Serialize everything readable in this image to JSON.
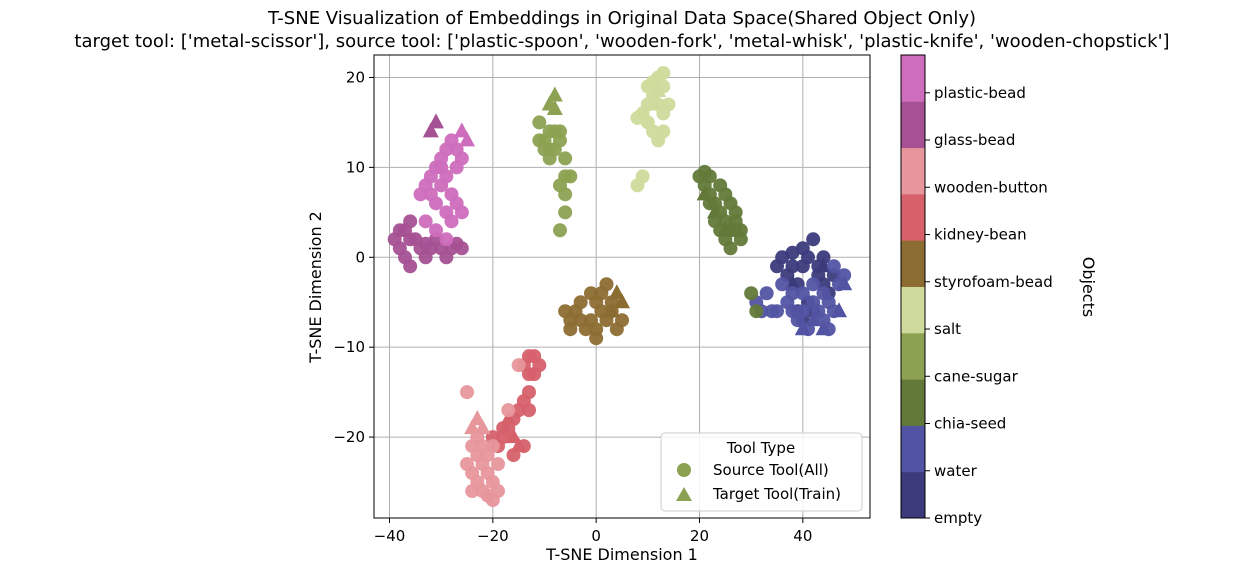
{
  "chart_data": {
    "type": "scatter",
    "title": "T-SNE Visualization of Embeddings in Original Data Space(Shared Object Only)",
    "subtitle": "target tool: ['metal-scissor'], source tool: ['plastic-spoon', 'wooden-fork', 'metal-whisk', 'plastic-knife', 'wooden-chopstick']",
    "xlabel": "T-SNE Dimension 1",
    "ylabel": "T-SNE Dimension 2",
    "xlim": [
      -43,
      53
    ],
    "ylim": [
      -29,
      22.5
    ],
    "xticks": [
      -40,
      -20,
      0,
      20,
      40
    ],
    "yticks": [
      -20,
      -10,
      0,
      10,
      20
    ],
    "xtick_labels": [
      "−40",
      "−20",
      "0",
      "20",
      "40"
    ],
    "ytick_labels": [
      "−20",
      "−10",
      "0",
      "10",
      "20"
    ],
    "grid": true,
    "legend": {
      "title": "Tool Type",
      "placement": "lower-right",
      "entries": [
        {
          "label": "Source Tool(All)",
          "marker": "circle"
        },
        {
          "label": "Target Tool(Train)",
          "marker": "triangle"
        }
      ]
    },
    "colorbar": {
      "label": "Objects",
      "categories": [
        {
          "name": "empty",
          "color": "#3b3b7c"
        },
        {
          "name": "water",
          "color": "#5254a3"
        },
        {
          "name": "chia-seed",
          "color": "#637939"
        },
        {
          "name": "cane-sugar",
          "color": "#8ca252"
        },
        {
          "name": "salt",
          "color": "#cedb9c"
        },
        {
          "name": "styrofoam-bead",
          "color": "#8c6d31"
        },
        {
          "name": "kidney-bean",
          "color": "#d6616b"
        },
        {
          "name": "wooden-button",
          "color": "#e7969c"
        },
        {
          "name": "glass-bead",
          "color": "#a55194"
        },
        {
          "name": "plastic-bead",
          "color": "#ce6dbd"
        }
      ],
      "tick_labels": [
        "empty",
        "water",
        "chia-seed",
        "cane-sugar",
        "salt",
        "styrofoam-bead",
        "kidney-bean",
        "wooden-button",
        "glass-bead",
        "plastic-bead"
      ]
    },
    "series": [
      {
        "object": "empty",
        "color": "#3b3b7c",
        "source": [
          [
            36,
            0
          ],
          [
            38,
            -1
          ],
          [
            40,
            1
          ],
          [
            42,
            2
          ],
          [
            44,
            0
          ],
          [
            39,
            -3
          ],
          [
            41,
            -5
          ],
          [
            43,
            -2
          ],
          [
            45,
            -4
          ],
          [
            37,
            -2
          ],
          [
            40,
            -1
          ],
          [
            42,
            -6
          ],
          [
            44,
            -3
          ],
          [
            38,
            0.5
          ],
          [
            41,
            0
          ],
          [
            43,
            -1
          ],
          [
            39,
            -6
          ],
          [
            46,
            -2
          ],
          [
            35,
            -1
          ],
          [
            40,
            -7
          ]
        ],
        "target": [
          [
            38,
            -3
          ],
          [
            44,
            -1
          ]
        ]
      },
      {
        "object": "water",
        "color": "#5254a3",
        "source": [
          [
            31,
            -5
          ],
          [
            33,
            -4
          ],
          [
            35,
            -6
          ],
          [
            37,
            -5
          ],
          [
            39,
            -7
          ],
          [
            41,
            -8
          ],
          [
            43,
            -6
          ],
          [
            45,
            -5
          ],
          [
            47,
            -3
          ],
          [
            46,
            -1
          ],
          [
            44,
            -4
          ],
          [
            42,
            -3
          ],
          [
            40,
            -4
          ],
          [
            38,
            -6
          ],
          [
            36,
            -3
          ],
          [
            34,
            -6
          ],
          [
            32,
            -6
          ],
          [
            44,
            -7
          ],
          [
            46,
            -6
          ],
          [
            48,
            -2
          ],
          [
            45,
            -8
          ],
          [
            42,
            -5
          ],
          [
            40,
            -6
          ],
          [
            38,
            -4
          ]
        ],
        "target": [
          [
            40,
            -8
          ],
          [
            44,
            -8
          ],
          [
            47,
            -6
          ],
          [
            48,
            -3
          ],
          [
            42,
            -7
          ]
        ]
      },
      {
        "object": "chia-seed",
        "color": "#637939",
        "source": [
          [
            20,
            9
          ],
          [
            21,
            8
          ],
          [
            22,
            7
          ],
          [
            23,
            6
          ],
          [
            24,
            5
          ],
          [
            25,
            4
          ],
          [
            26,
            3
          ],
          [
            27,
            3
          ],
          [
            28,
            2
          ],
          [
            27,
            4
          ],
          [
            26,
            6
          ],
          [
            25,
            7
          ],
          [
            24,
            8
          ],
          [
            22,
            9
          ],
          [
            21,
            9.5
          ],
          [
            23,
            4
          ],
          [
            26,
            1
          ],
          [
            28,
            3
          ],
          [
            27,
            5
          ],
          [
            25,
            2
          ],
          [
            30,
            -4
          ],
          [
            31,
            -6
          ],
          [
            22,
            6
          ],
          [
            24,
            3
          ]
        ],
        "target": [
          [
            21,
            7
          ],
          [
            23,
            5
          ],
          [
            25,
            3
          ]
        ]
      },
      {
        "object": "cane-sugar",
        "color": "#8ca252",
        "source": [
          [
            -11,
            15
          ],
          [
            -10,
            13
          ],
          [
            -9,
            14
          ],
          [
            -8,
            12
          ],
          [
            -7,
            13
          ],
          [
            -6,
            11
          ],
          [
            -10,
            12
          ],
          [
            -11,
            13
          ],
          [
            -9,
            12
          ],
          [
            -7,
            14
          ],
          [
            -6,
            9
          ],
          [
            -5,
            9
          ],
          [
            -7,
            8
          ],
          [
            -6,
            7
          ],
          [
            -6,
            5
          ],
          [
            -7,
            3
          ],
          [
            -9,
            11
          ],
          [
            -8,
            14
          ]
        ],
        "target": [
          [
            -9,
            17
          ],
          [
            -8,
            18
          ],
          [
            -8,
            16.5
          ]
        ]
      },
      {
        "object": "salt",
        "color": "#cedb9c",
        "source": [
          [
            10,
            19
          ],
          [
            11,
            18
          ],
          [
            12,
            20
          ],
          [
            13,
            19
          ],
          [
            14,
            17
          ],
          [
            12,
            17
          ],
          [
            10,
            17
          ],
          [
            9,
            16
          ],
          [
            8,
            15.5
          ],
          [
            13,
            16
          ],
          [
            11,
            14
          ],
          [
            12,
            13
          ],
          [
            13,
            14
          ],
          [
            9,
            9
          ],
          [
            8,
            8
          ],
          [
            11,
            19.5
          ],
          [
            13,
            20.5
          ],
          [
            10,
            15
          ]
        ],
        "target": [
          [
            11,
            17
          ],
          [
            12,
            18.5
          ]
        ]
      },
      {
        "object": "styrofoam-bead",
        "color": "#8c6d31",
        "source": [
          [
            -6,
            -6
          ],
          [
            -5,
            -7
          ],
          [
            -4,
            -6
          ],
          [
            -3,
            -7
          ],
          [
            -2,
            -8
          ],
          [
            -1,
            -7
          ],
          [
            0,
            -9
          ],
          [
            1,
            -6
          ],
          [
            2,
            -7
          ],
          [
            3,
            -6
          ],
          [
            4,
            -8
          ],
          [
            5,
            -7
          ],
          [
            0,
            -5
          ],
          [
            -1,
            -4
          ],
          [
            1,
            -4
          ],
          [
            2,
            -3
          ],
          [
            3,
            -5
          ],
          [
            -3,
            -5
          ],
          [
            -5,
            -8
          ],
          [
            0,
            -8
          ]
        ],
        "target": [
          [
            4,
            -4
          ],
          [
            3,
            -6
          ],
          [
            5,
            -5
          ]
        ]
      },
      {
        "object": "kidney-bean",
        "color": "#d6616b",
        "source": [
          [
            -14,
            -12
          ],
          [
            -13,
            -13
          ],
          [
            -12,
            -11
          ],
          [
            -11,
            -12
          ],
          [
            -13,
            -15
          ],
          [
            -14,
            -16
          ],
          [
            -13,
            -17
          ],
          [
            -15,
            -17
          ],
          [
            -16,
            -18
          ],
          [
            -17,
            -19
          ],
          [
            -18,
            -20
          ],
          [
            -19,
            -21
          ],
          [
            -20,
            -20
          ],
          [
            -18,
            -19
          ],
          [
            -16,
            -22
          ],
          [
            -14,
            -21
          ],
          [
            -12,
            -13
          ],
          [
            -13,
            -11
          ]
        ],
        "target": [
          [
            -15,
            -21
          ],
          [
            -16,
            -20
          ],
          [
            -17,
            -18
          ]
        ]
      },
      {
        "object": "wooden-button",
        "color": "#e7969c",
        "source": [
          [
            -25,
            -15
          ],
          [
            -24,
            -21
          ],
          [
            -23,
            -22
          ],
          [
            -22,
            -23
          ],
          [
            -21,
            -24
          ],
          [
            -20,
            -25
          ],
          [
            -19,
            -26
          ],
          [
            -22,
            -26
          ],
          [
            -24,
            -24
          ],
          [
            -25,
            -23
          ],
          [
            -23,
            -25
          ],
          [
            -21,
            -22
          ],
          [
            -20,
            -21
          ],
          [
            -22,
            -21
          ],
          [
            -24,
            -26
          ],
          [
            -21,
            -26.5
          ],
          [
            -19,
            -23
          ],
          [
            -20,
            -27
          ],
          [
            -23,
            -20
          ],
          [
            -15,
            -12
          ],
          [
            -17,
            -17
          ]
        ],
        "target": [
          [
            -24,
            -19
          ],
          [
            -22,
            -19
          ],
          [
            -23,
            -18
          ]
        ]
      },
      {
        "object": "glass-bead",
        "color": "#a55194",
        "source": [
          [
            -39,
            2
          ],
          [
            -38,
            1
          ],
          [
            -37,
            3
          ],
          [
            -36,
            4
          ],
          [
            -38,
            3
          ],
          [
            -37,
            0
          ],
          [
            -36,
            -1
          ],
          [
            -34,
            1
          ],
          [
            -33,
            0
          ],
          [
            -32,
            1
          ],
          [
            -31,
            2
          ],
          [
            -30,
            1
          ],
          [
            -29,
            0
          ],
          [
            -28,
            1
          ],
          [
            -27,
            1.5
          ],
          [
            -35,
            2
          ],
          [
            -33,
            1.5
          ],
          [
            -36,
            2
          ],
          [
            -26,
            1
          ]
        ],
        "target": [
          [
            -32,
            14
          ],
          [
            -31,
            15
          ]
        ]
      },
      {
        "object": "plastic-bead",
        "color": "#ce6dbd",
        "source": [
          [
            -34,
            7
          ],
          [
            -33,
            8
          ],
          [
            -32,
            9
          ],
          [
            -31,
            10
          ],
          [
            -30,
            11
          ],
          [
            -29,
            12
          ],
          [
            -28,
            13
          ],
          [
            -27,
            12
          ],
          [
            -26,
            11
          ],
          [
            -27,
            10
          ],
          [
            -29,
            9
          ],
          [
            -30,
            8
          ],
          [
            -31,
            6
          ],
          [
            -29,
            5
          ],
          [
            -28,
            4
          ],
          [
            -27,
            6
          ],
          [
            -26,
            5
          ],
          [
            -33,
            4
          ],
          [
            -31,
            3
          ],
          [
            -29,
            2
          ],
          [
            -28,
            7
          ],
          [
            -30,
            10
          ],
          [
            -32,
            7
          ]
        ],
        "target": [
          [
            -25,
            13
          ],
          [
            -26,
            14
          ]
        ]
      }
    ]
  }
}
